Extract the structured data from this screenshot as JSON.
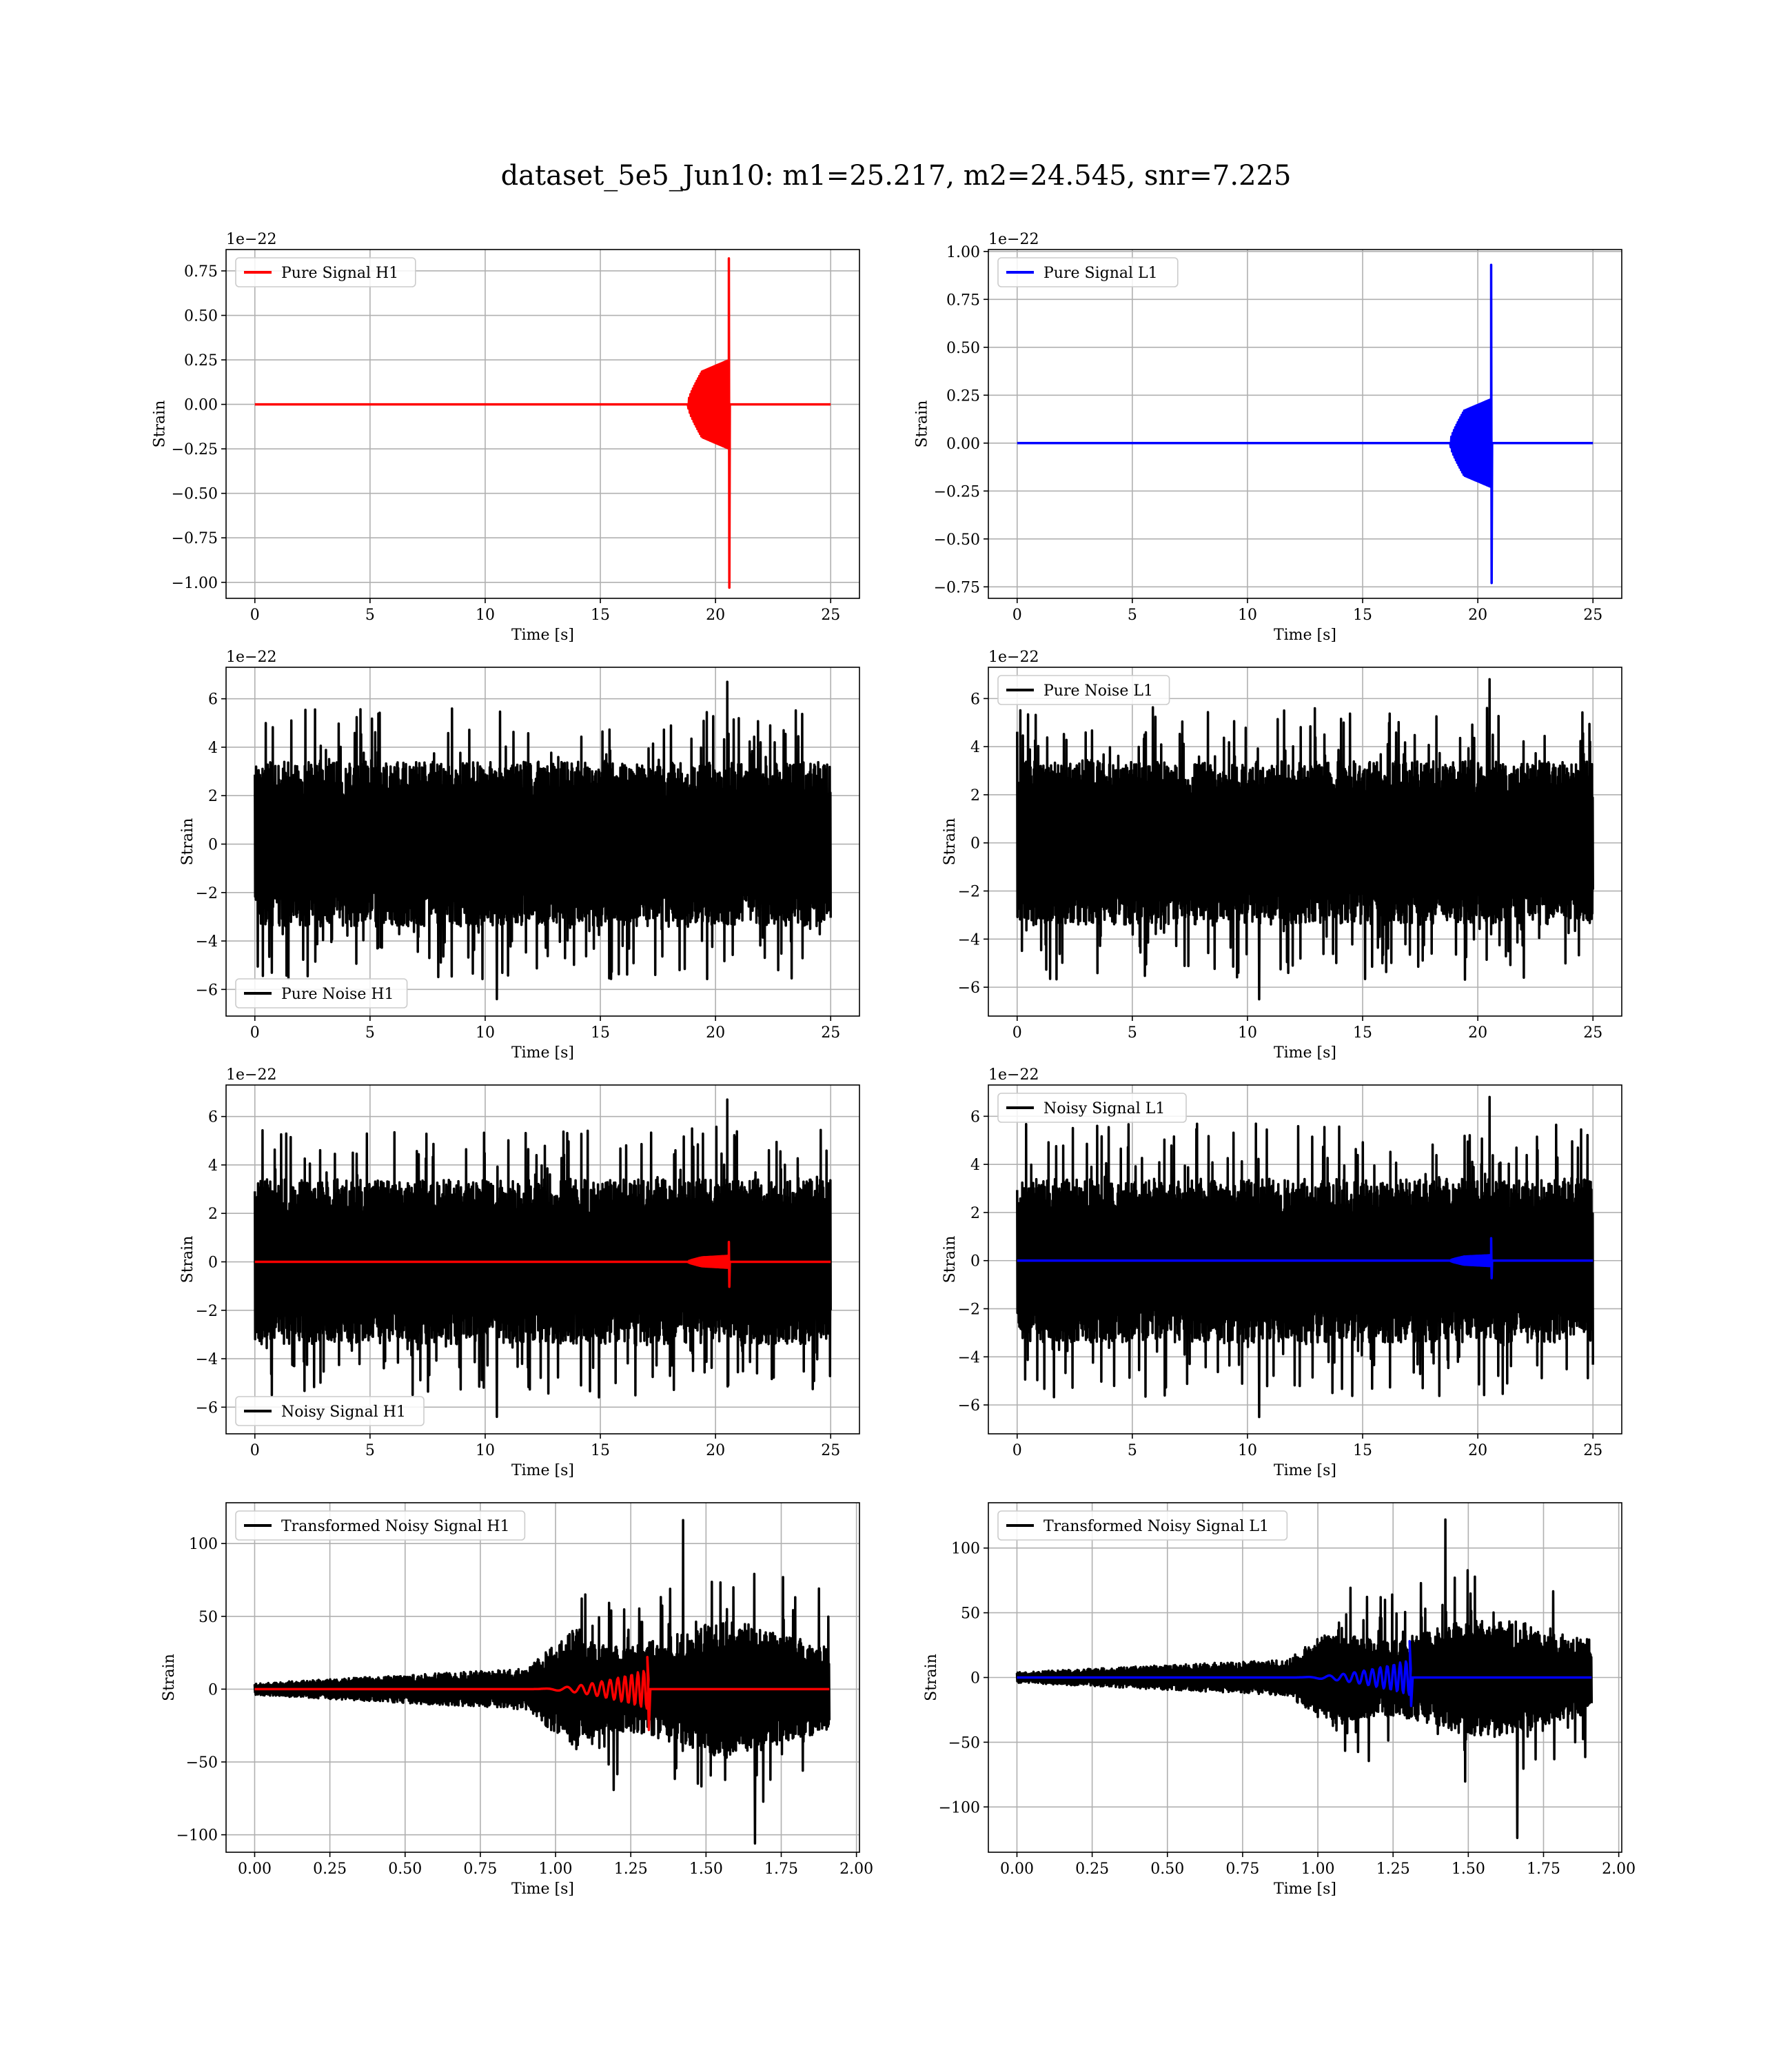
{
  "figure": {
    "suptitle": "dataset_5e5_Jun10: m1=25.217, m2=24.545, snr=7.225"
  },
  "chart_data": [
    {
      "type": "line",
      "legend": [
        "Pure Signal H1"
      ],
      "legend_loc": "upper-left",
      "xlabel": "Time [s]",
      "ylabel": "Strain",
      "y_offset_label": "1e−22",
      "xlim": [
        -1.25,
        26.25
      ],
      "ylim": [
        -1.09,
        0.87
      ],
      "xticks": [
        0,
        5,
        10,
        15,
        20,
        25
      ],
      "xtick_labels": [
        "0",
        "5",
        "10",
        "15",
        "20",
        "25"
      ],
      "yticks": [
        -1.0,
        -0.75,
        -0.5,
        -0.25,
        0.0,
        0.25,
        0.5,
        0.75
      ],
      "ytick_labels": [
        "−1.00",
        "−0.75",
        "−0.50",
        "−0.25",
        "0.00",
        "0.25",
        "0.50",
        "0.75"
      ],
      "grid": true,
      "series": [
        {
          "name": "Pure Signal H1",
          "color": "#ff0000",
          "kind": "chirp",
          "x_start": 0,
          "x_end": 25,
          "merger": 20.6,
          "onset": 18.8,
          "peak_pos": 0.82,
          "peak_neg": -1.03,
          "inspiral_amp": 0.25
        }
      ]
    },
    {
      "type": "line",
      "legend": [
        "Pure Signal L1"
      ],
      "legend_loc": "upper-left",
      "xlabel": "Time [s]",
      "ylabel": "Strain",
      "y_offset_label": "1e−22",
      "xlim": [
        -1.25,
        26.25
      ],
      "ylim": [
        -0.81,
        1.01
      ],
      "xticks": [
        0,
        5,
        10,
        15,
        20,
        25
      ],
      "xtick_labels": [
        "0",
        "5",
        "10",
        "15",
        "20",
        "25"
      ],
      "yticks": [
        -0.75,
        -0.5,
        -0.25,
        0.0,
        0.25,
        0.5,
        0.75,
        1.0
      ],
      "ytick_labels": [
        "−0.75",
        "−0.50",
        "−0.25",
        "0.00",
        "0.25",
        "0.50",
        "0.75",
        "1.00"
      ],
      "grid": true,
      "series": [
        {
          "name": "Pure Signal L1",
          "color": "#0000ff",
          "kind": "chirp",
          "x_start": 0,
          "x_end": 25,
          "merger": 20.6,
          "onset": 18.8,
          "peak_pos": 0.93,
          "peak_neg": -0.73,
          "inspiral_amp": 0.23
        }
      ]
    },
    {
      "type": "line",
      "legend": [
        "Pure Noise H1"
      ],
      "legend_loc": "lower-left",
      "xlabel": "Time [s]",
      "ylabel": "Strain",
      "y_offset_label": "1e−22",
      "xlim": [
        -1.25,
        26.25
      ],
      "ylim": [
        -7.1,
        7.3
      ],
      "xticks": [
        0,
        5,
        10,
        15,
        20,
        25
      ],
      "xtick_labels": [
        "0",
        "5",
        "10",
        "15",
        "20",
        "25"
      ],
      "yticks": [
        -6,
        -4,
        -2,
        0,
        2,
        4,
        6
      ],
      "ytick_labels": [
        "−6",
        "−4",
        "−2",
        "0",
        "2",
        "4",
        "6"
      ],
      "grid": true,
      "series": [
        {
          "name": "Pure Noise H1",
          "color": "#000000",
          "kind": "noise",
          "x_start": 0,
          "x_end": 25,
          "band": 3.4,
          "spike_max": 6.7,
          "spike_min": -6.4
        }
      ]
    },
    {
      "type": "line",
      "legend": [
        "Pure Noise L1"
      ],
      "legend_loc": "upper-left",
      "xlabel": "Time [s]",
      "ylabel": "Strain",
      "y_offset_label": "1e−22",
      "xlim": [
        -1.25,
        26.25
      ],
      "ylim": [
        -7.2,
        7.3
      ],
      "xticks": [
        0,
        5,
        10,
        15,
        20,
        25
      ],
      "xtick_labels": [
        "0",
        "5",
        "10",
        "15",
        "20",
        "25"
      ],
      "yticks": [
        -6,
        -4,
        -2,
        0,
        2,
        4,
        6
      ],
      "ytick_labels": [
        "−6",
        "−4",
        "−2",
        "0",
        "2",
        "4",
        "6"
      ],
      "grid": true,
      "series": [
        {
          "name": "Pure Noise L1",
          "color": "#000000",
          "kind": "noise",
          "x_start": 0,
          "x_end": 25,
          "band": 3.4,
          "spike_max": 6.8,
          "spike_min": -6.5
        }
      ]
    },
    {
      "type": "line",
      "legend": [
        "Noisy Signal H1"
      ],
      "legend_loc": "lower-left",
      "xlabel": "Time [s]",
      "ylabel": "Strain",
      "y_offset_label": "1e−22",
      "xlim": [
        -1.25,
        26.25
      ],
      "ylim": [
        -7.1,
        7.3
      ],
      "xticks": [
        0,
        5,
        10,
        15,
        20,
        25
      ],
      "xtick_labels": [
        "0",
        "5",
        "10",
        "15",
        "20",
        "25"
      ],
      "yticks": [
        -6,
        -4,
        -2,
        0,
        2,
        4,
        6
      ],
      "ytick_labels": [
        "−6",
        "−4",
        "−2",
        "0",
        "2",
        "4",
        "6"
      ],
      "grid": true,
      "series": [
        {
          "name": "Noisy Signal H1",
          "color": "#000000",
          "kind": "noise",
          "x_start": 0,
          "x_end": 25,
          "band": 3.4,
          "spike_max": 6.7,
          "spike_min": -6.4
        },
        {
          "color": "#ff0000",
          "kind": "chirp",
          "x_start": 0,
          "x_end": 25,
          "merger": 20.6,
          "onset": 18.8,
          "peak_pos": 0.82,
          "peak_neg": -1.03,
          "inspiral_amp": 0.25
        }
      ]
    },
    {
      "type": "line",
      "legend": [
        "Noisy Signal L1"
      ],
      "legend_loc": "upper-left",
      "xlabel": "Time [s]",
      "ylabel": "Strain",
      "y_offset_label": "1e−22",
      "xlim": [
        -1.25,
        26.25
      ],
      "ylim": [
        -7.2,
        7.3
      ],
      "xticks": [
        0,
        5,
        10,
        15,
        20,
        25
      ],
      "xtick_labels": [
        "0",
        "5",
        "10",
        "15",
        "20",
        "25"
      ],
      "yticks": [
        -6,
        -4,
        -2,
        0,
        2,
        4,
        6
      ],
      "ytick_labels": [
        "−6",
        "−4",
        "−2",
        "0",
        "2",
        "4",
        "6"
      ],
      "grid": true,
      "series": [
        {
          "name": "Noisy Signal L1",
          "color": "#000000",
          "kind": "noise",
          "x_start": 0,
          "x_end": 25,
          "band": 3.4,
          "spike_max": 6.8,
          "spike_min": -6.5
        },
        {
          "color": "#0000ff",
          "kind": "chirp",
          "x_start": 0,
          "x_end": 25,
          "merger": 20.6,
          "onset": 18.8,
          "peak_pos": 0.93,
          "peak_neg": -0.73,
          "inspiral_amp": 0.23
        }
      ]
    },
    {
      "type": "line",
      "legend": [
        "Transformed Noisy Signal H1"
      ],
      "legend_loc": "upper-left",
      "xlabel": "Time [s]",
      "ylabel": "Strain",
      "y_offset_label": "",
      "xlim": [
        -0.095,
        2.01
      ],
      "ylim": [
        -112,
        128
      ],
      "xticks": [
        0,
        0.25,
        0.5,
        0.75,
        1.0,
        1.25,
        1.5,
        1.75,
        2.0
      ],
      "xtick_labels": [
        "0.00",
        "0.25",
        "0.50",
        "0.75",
        "1.00",
        "1.25",
        "1.50",
        "1.75",
        "2.00"
      ],
      "yticks": [
        -100,
        -50,
        0,
        50,
        100
      ],
      "ytick_labels": [
        "−100",
        "−50",
        "0",
        "50",
        "100"
      ],
      "grid": true,
      "series": [
        {
          "name": "Transformed Noisy Signal H1",
          "color": "#000000",
          "kind": "tnoise",
          "x_start": 0,
          "x_end": 1.91,
          "spike_max": 116,
          "spike_min": -106
        },
        {
          "color": "#ff0000",
          "kind": "tchirp",
          "x_start": 0,
          "x_end": 1.91,
          "merger": 1.31,
          "onset": 0.9,
          "peak_pos": 22,
          "peak_neg": -28
        }
      ]
    },
    {
      "type": "line",
      "legend": [
        "Transformed Noisy Signal L1"
      ],
      "legend_loc": "upper-left",
      "xlabel": "Time [s]",
      "ylabel": "Strain",
      "y_offset_label": "",
      "xlim": [
        -0.095,
        2.01
      ],
      "ylim": [
        -135,
        135
      ],
      "xticks": [
        0,
        0.25,
        0.5,
        0.75,
        1.0,
        1.25,
        1.5,
        1.75,
        2.0
      ],
      "xtick_labels": [
        "0.00",
        "0.25",
        "0.50",
        "0.75",
        "1.00",
        "1.25",
        "1.50",
        "1.75",
        "2.00"
      ],
      "yticks": [
        -100,
        -50,
        0,
        50,
        100
      ],
      "ytick_labels": [
        "−100",
        "−50",
        "0",
        "50",
        "100"
      ],
      "grid": true,
      "series": [
        {
          "name": "Transformed Noisy Signal L1",
          "color": "#000000",
          "kind": "tnoise",
          "x_start": 0,
          "x_end": 1.91,
          "spike_max": 122,
          "spike_min": -124
        },
        {
          "color": "#0000ff",
          "kind": "tchirp",
          "x_start": 0,
          "x_end": 1.91,
          "merger": 1.31,
          "onset": 0.9,
          "peak_pos": 28,
          "peak_neg": -22
        }
      ]
    }
  ]
}
